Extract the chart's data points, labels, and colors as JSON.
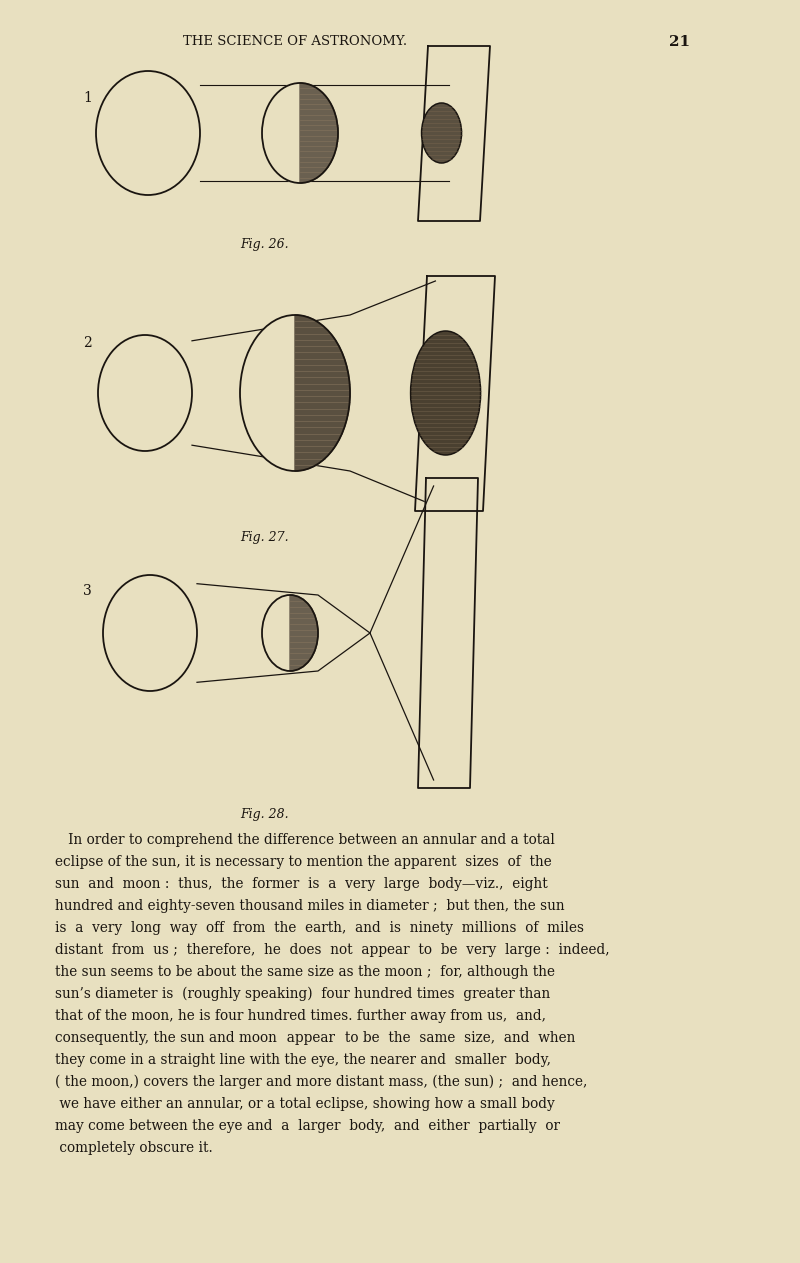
{
  "bg_color": "#e8e0c0",
  "paper_color": "#ddd8b0",
  "ink_color": "#1a1510",
  "line_color": "#1a1510",
  "header_title": "THE SCIENCE OF ASTRONOMY.",
  "header_page": "21",
  "fig26_label": "Fig. 26.",
  "fig27_label": "Fig. 27.",
  "fig28_label": "Fig. 28.",
  "label1": "1",
  "label2": "2",
  "label3": "3",
  "body_lines": [
    "   In order to comprehend the difference between an annular and a total",
    "eclipse of the sun, it is necessary to mention the apparent  sizes  of  the",
    "sun  and  moon :  thus,  the  former  is  a  very  large  body—viz.,  eight",
    "hundred and eighty-seven thousand miles in diameter ;  but then, the sun",
    "is  a  very  long  way  off  from  the  earth,  and  is  ninety  millions  of  miles",
    "distant  from  us ;  therefore,  he  does  not  appear  to  be  very  large :  indeed,",
    "the sun seems to be about the same size as the moon ;  for, although the",
    "sun’s diameter is  (roughly speaking)  four hundred times  greater than",
    "that of the moon, he is four hundred times. further away from us,  and,",
    "consequently, the sun and moon   appear   to be  the  same  size,  and  when",
    "they come in a straight line with the eye, the nearer and  smaller  body,",
    "( the moon,) covers the larger and more distant mass, (the sun) ;  and hence,",
    " we have either an annular, or a total eclipse, showing how a small body",
    "may come between the eye and  a  larger  body,  and  either  partially  or",
    " completely obscure it."
  ]
}
